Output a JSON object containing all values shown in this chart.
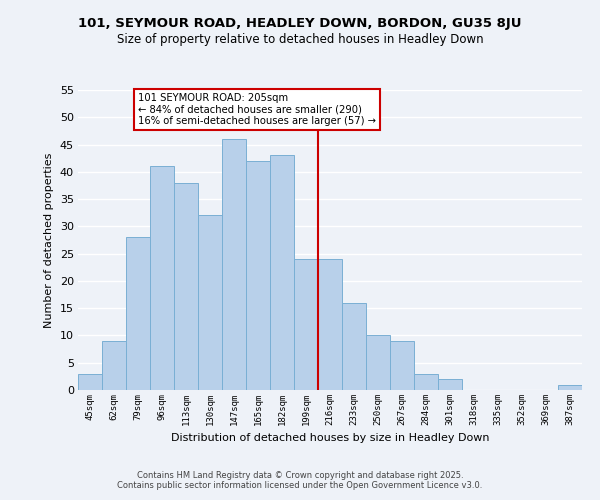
{
  "title": "101, SEYMOUR ROAD, HEADLEY DOWN, BORDON, GU35 8JU",
  "subtitle": "Size of property relative to detached houses in Headley Down",
  "xlabel": "Distribution of detached houses by size in Headley Down",
  "ylabel": "Number of detached properties",
  "bin_labels": [
    "45sqm",
    "62sqm",
    "79sqm",
    "96sqm",
    "113sqm",
    "130sqm",
    "147sqm",
    "165sqm",
    "182sqm",
    "199sqm",
    "216sqm",
    "233sqm",
    "250sqm",
    "267sqm",
    "284sqm",
    "301sqm",
    "318sqm",
    "335sqm",
    "352sqm",
    "369sqm",
    "387sqm"
  ],
  "bar_values": [
    3,
    9,
    28,
    41,
    38,
    32,
    46,
    42,
    43,
    24,
    24,
    16,
    10,
    9,
    3,
    2,
    0,
    0,
    0,
    0,
    1
  ],
  "bar_color": "#b8d0ea",
  "bar_edge_color": "#7aafd4",
  "vline_x": 9.5,
  "vline_color": "#cc0000",
  "annotation_title": "101 SEYMOUR ROAD: 205sqm",
  "annotation_line1": "← 84% of detached houses are smaller (290)",
  "annotation_line2": "16% of semi-detached houses are larger (57) →",
  "annotation_box_color": "#ffffff",
  "annotation_border_color": "#cc0000",
  "ylim": [
    0,
    55
  ],
  "yticks": [
    0,
    5,
    10,
    15,
    20,
    25,
    30,
    35,
    40,
    45,
    50,
    55
  ],
  "bg_color": "#eef2f8",
  "grid_color": "#ffffff",
  "footer_line1": "Contains HM Land Registry data © Crown copyright and database right 2025.",
  "footer_line2": "Contains public sector information licensed under the Open Government Licence v3.0."
}
